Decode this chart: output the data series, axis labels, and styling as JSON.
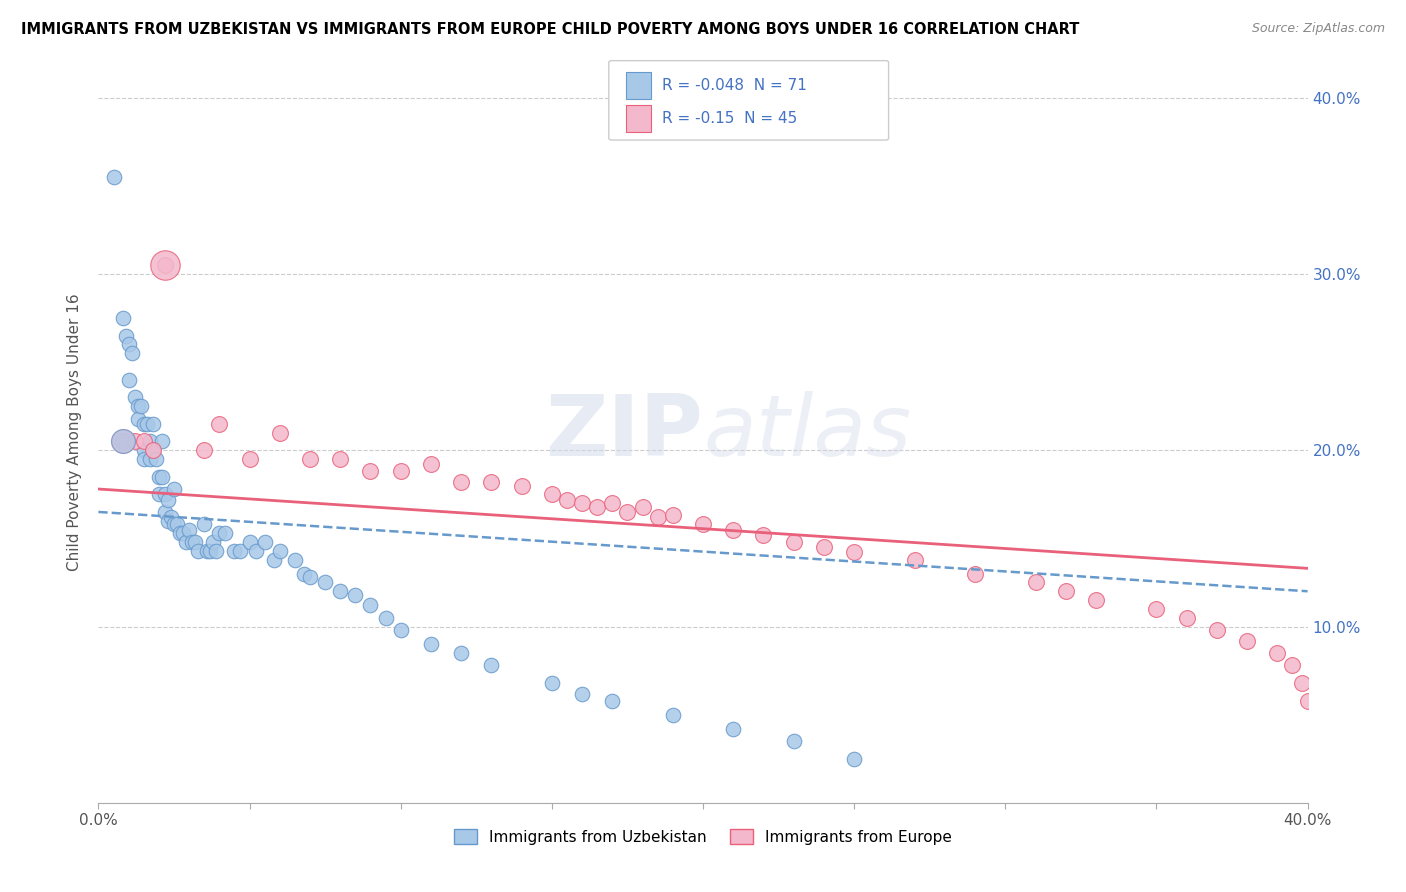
{
  "title": "IMMIGRANTS FROM UZBEKISTAN VS IMMIGRANTS FROM EUROPE CHILD POVERTY AMONG BOYS UNDER 16 CORRELATION CHART",
  "source": "Source: ZipAtlas.com",
  "ylabel": "Child Poverty Among Boys Under 16",
  "xlim": [
    0.0,
    0.4
  ],
  "ylim": [
    0.0,
    0.42
  ],
  "R_uzbekistan": -0.048,
  "N_uzbekistan": 71,
  "R_europe": -0.15,
  "N_europe": 45,
  "color_uzbekistan": "#a8c8e8",
  "color_europe": "#f4b8cc",
  "color_uzbekistan_line": "#6699cc",
  "color_europe_line": "#e8607a",
  "watermark": "ZIPatlas",
  "uzbekistan_x": [
    0.005,
    0.008,
    0.009,
    0.01,
    0.01,
    0.011,
    0.012,
    0.013,
    0.013,
    0.014,
    0.015,
    0.015,
    0.015,
    0.016,
    0.017,
    0.017,
    0.018,
    0.018,
    0.019,
    0.02,
    0.02,
    0.021,
    0.021,
    0.022,
    0.022,
    0.023,
    0.023,
    0.024,
    0.025,
    0.025,
    0.026,
    0.027,
    0.028,
    0.029,
    0.03,
    0.031,
    0.032,
    0.033,
    0.035,
    0.036,
    0.037,
    0.038,
    0.039,
    0.04,
    0.042,
    0.045,
    0.047,
    0.05,
    0.052,
    0.055,
    0.058,
    0.06,
    0.065,
    0.068,
    0.07,
    0.075,
    0.08,
    0.085,
    0.09,
    0.095,
    0.1,
    0.11,
    0.12,
    0.13,
    0.15,
    0.16,
    0.17,
    0.19,
    0.21,
    0.23,
    0.25
  ],
  "uzbekistan_y": [
    0.355,
    0.275,
    0.265,
    0.26,
    0.24,
    0.255,
    0.23,
    0.225,
    0.218,
    0.225,
    0.2,
    0.215,
    0.195,
    0.215,
    0.205,
    0.195,
    0.215,
    0.2,
    0.195,
    0.185,
    0.175,
    0.205,
    0.185,
    0.175,
    0.165,
    0.172,
    0.16,
    0.162,
    0.178,
    0.158,
    0.158,
    0.153,
    0.153,
    0.148,
    0.155,
    0.148,
    0.148,
    0.143,
    0.158,
    0.143,
    0.143,
    0.148,
    0.143,
    0.153,
    0.153,
    0.143,
    0.143,
    0.148,
    0.143,
    0.148,
    0.138,
    0.143,
    0.138,
    0.13,
    0.128,
    0.125,
    0.12,
    0.118,
    0.112,
    0.105,
    0.098,
    0.09,
    0.085,
    0.078,
    0.068,
    0.062,
    0.058,
    0.05,
    0.042,
    0.035,
    0.025
  ],
  "europe_x": [
    0.008,
    0.012,
    0.015,
    0.018,
    0.022,
    0.035,
    0.04,
    0.05,
    0.06,
    0.07,
    0.08,
    0.09,
    0.1,
    0.11,
    0.12,
    0.13,
    0.14,
    0.15,
    0.155,
    0.16,
    0.165,
    0.17,
    0.175,
    0.18,
    0.185,
    0.19,
    0.2,
    0.21,
    0.22,
    0.23,
    0.24,
    0.25,
    0.27,
    0.29,
    0.31,
    0.32,
    0.33,
    0.35,
    0.36,
    0.37,
    0.38,
    0.39,
    0.395,
    0.398,
    0.4
  ],
  "europe_y": [
    0.205,
    0.205,
    0.205,
    0.2,
    0.305,
    0.2,
    0.215,
    0.195,
    0.21,
    0.195,
    0.195,
    0.188,
    0.188,
    0.192,
    0.182,
    0.182,
    0.18,
    0.175,
    0.172,
    0.17,
    0.168,
    0.17,
    0.165,
    0.168,
    0.162,
    0.163,
    0.158,
    0.155,
    0.152,
    0.148,
    0.145,
    0.142,
    0.138,
    0.13,
    0.125,
    0.12,
    0.115,
    0.11,
    0.105,
    0.098,
    0.092,
    0.085,
    0.078,
    0.068,
    0.058
  ]
}
